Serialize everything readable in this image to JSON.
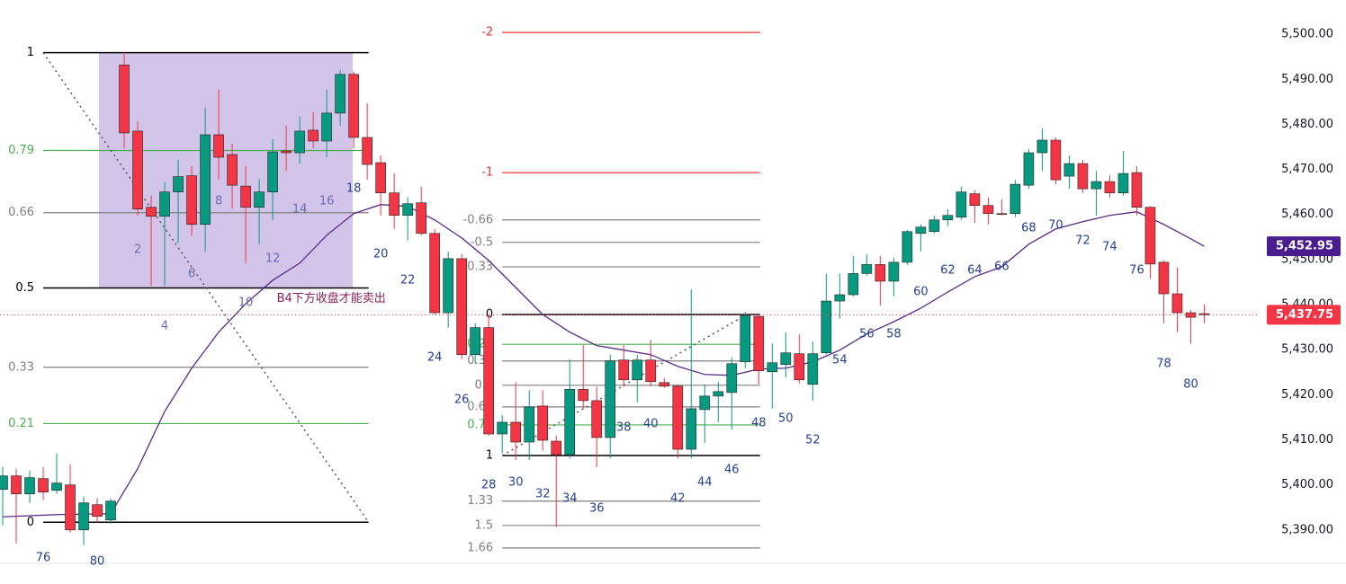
{
  "chart_data": {
    "type": "candlestick",
    "up_color": "#089981",
    "down_color": "#f23645",
    "xlim": [
      -8.2,
      85.1
    ],
    "ylim": [
      5378.0,
      5507.6
    ],
    "yticks": [
      {
        "value": 5390,
        "label": "5,390.00"
      },
      {
        "value": 5400,
        "label": "5,400.00"
      },
      {
        "value": 5410,
        "label": "5,410.00"
      },
      {
        "value": 5420,
        "label": "5,420.00"
      },
      {
        "value": 5430,
        "label": "5,430.00"
      },
      {
        "value": 5440,
        "label": "5,440.00"
      },
      {
        "value": 5450,
        "label": "5,450.00"
      },
      {
        "value": 5460,
        "label": "5,460.00"
      },
      {
        "value": 5470,
        "label": "5,470.00"
      },
      {
        "value": 5480,
        "label": "5,480.00"
      },
      {
        "value": 5490,
        "label": "5,490.00"
      },
      {
        "value": 5500,
        "label": "5,500.00"
      }
    ],
    "x": [
      -8,
      -7,
      -6,
      -5,
      -4,
      -3,
      -2,
      -1,
      0,
      1,
      2,
      3,
      4,
      5,
      6,
      7,
      8,
      9,
      10,
      11,
      12,
      13,
      14,
      15,
      16,
      17,
      18,
      19,
      20,
      21,
      22,
      23,
      24,
      25,
      26,
      27,
      28,
      29,
      30,
      31,
      32,
      33,
      34,
      35,
      36,
      37,
      38,
      39,
      40,
      41,
      42,
      43,
      44,
      45,
      46,
      47,
      48,
      49,
      50,
      51,
      52,
      53,
      54,
      55,
      56,
      57,
      58,
      59,
      60,
      61,
      62,
      63,
      64,
      65,
      66,
      67,
      68,
      69,
      70,
      71,
      72,
      73,
      74,
      75,
      76,
      77,
      78,
      79,
      80,
      81
    ],
    "open": [
      5399,
      5402,
      5398,
      5401.4,
      5398.8,
      5400,
      5390,
      5395.6,
      5392.2,
      5493.2,
      5478.5,
      5461.6,
      5459.6,
      5465,
      5468.6,
      5457.8,
      5477.7,
      5473.3,
      5466.3,
      5461.6,
      5465,
      5474.1,
      5473.7,
      5478.7,
      5476.3,
      5482.5,
      5491.1,
      5477.1,
      5471.5,
      5464.8,
      5459.8,
      5462.6,
      5455.8,
      5438.2,
      5450.2,
      5428.9,
      5434.9,
      5411.3,
      5413.9,
      5409.5,
      5417.5,
      5409.7,
      5406.7,
      5421.2,
      5418.7,
      5410.5,
      5427.7,
      5423.3,
      5427.7,
      5422.7,
      5421.9,
      5407.9,
      5416.7,
      5419.7,
      5420.5,
      5427.3,
      5437.4,
      5425.1,
      5426.7,
      5429.1,
      5422.3,
      5429.3,
      5440.8,
      5442.2,
      5446.9,
      5448.9,
      5445.2,
      5449.4,
      5455.8,
      5456.2,
      5458.8,
      5459.4,
      5464.6,
      5462.0,
      5460.2,
      5460.2,
      5466.5,
      5473.7,
      5476.5,
      5468.5,
      5471.3,
      5465.7,
      5467.3,
      5464.8,
      5469.3,
      5461.6,
      5449.4,
      5442.4,
      5438.2,
      5438.0
    ],
    "high": [
      5404,
      5403.6,
      5403.2,
      5404,
      5407,
      5404.6,
      5397.4,
      5397,
      5397,
      5496,
      5480.7,
      5464.2,
      5467.2,
      5472.2,
      5470.7,
      5483.7,
      5487.7,
      5475.7,
      5470.7,
      5467.8,
      5476.7,
      5479.7,
      5481.7,
      5482.7,
      5487.7,
      5492.1,
      5491.7,
      5484.7,
      5473.1,
      5469.1,
      5463.8,
      5466.2,
      5456.8,
      5451.8,
      5451.2,
      5435.9,
      5437.8,
      5415.5,
      5422.8,
      5421.0,
      5421.0,
      5410.9,
      5427.9,
      5431.0,
      5421.8,
      5428.9,
      5431.0,
      5428.9,
      5432.2,
      5423.7,
      5422.3,
      5443.4,
      5422.3,
      5422.9,
      5428.3,
      5438.4,
      5437.8,
      5431.4,
      5433.8,
      5433.4,
      5431.8,
      5446.9,
      5446.9,
      5450.8,
      5451.2,
      5450.8,
      5450.4,
      5456.6,
      5457.8,
      5459.8,
      5461.2,
      5466.2,
      5465.4,
      5463.8,
      5463.4,
      5467.7,
      5474.5,
      5479.1,
      5477.1,
      5473.1,
      5472.1,
      5469.7,
      5468.7,
      5474.1,
      5470.7,
      5461.8,
      5449.8,
      5448.2,
      5438.8,
      5440.0
    ],
    "low": [
      5391,
      5387,
      5396,
      5396.6,
      5398,
      5389.4,
      5386.6,
      5391.6,
      5391.4,
      5474.7,
      5459.8,
      5444.2,
      5444.2,
      5453.7,
      5455.4,
      5451.8,
      5467.7,
      5461.3,
      5449.2,
      5453.4,
      5458.8,
      5469.7,
      5471.3,
      5474.7,
      5472.7,
      5479.7,
      5474.7,
      5467.7,
      5459.8,
      5456.8,
      5454.2,
      5455.4,
      5437.8,
      5434.9,
      5427.9,
      5426.9,
      5410.9,
      5407.0,
      5405.5,
      5405.5,
      5407.6,
      5390.6,
      5405.9,
      5416.9,
      5403.9,
      5405.9,
      5421.8,
      5418.3,
      5421.8,
      5421.5,
      5405.9,
      5405.9,
      5409.3,
      5413.9,
      5412.3,
      5425.9,
      5422.3,
      5416.9,
      5423.9,
      5422.5,
      5418.7,
      5428.9,
      5436.9,
      5441.8,
      5446.5,
      5439.8,
      5441.8,
      5448.8,
      5451.8,
      5455.8,
      5457.4,
      5458.8,
      5458.2,
      5457.8,
      5459.8,
      5459.4,
      5465.7,
      5469.7,
      5466.7,
      5465.7,
      5464.8,
      5459.8,
      5463.8,
      5464.2,
      5459.8,
      5445.8,
      5435.9,
      5433.9,
      5431.3,
      5435.9
    ],
    "close": [
      5402,
      5398,
      5401.6,
      5398.4,
      5400.4,
      5390,
      5396,
      5393,
      5396.4,
      5478.1,
      5461.2,
      5459.6,
      5465,
      5468.4,
      5457.8,
      5477.7,
      5472.7,
      5466.5,
      5461.6,
      5465,
      5473.9,
      5473.7,
      5478.5,
      5476.3,
      5482.5,
      5491.1,
      5477.1,
      5471.1,
      5464.8,
      5459.8,
      5462.4,
      5455.8,
      5438.2,
      5450.2,
      5428.9,
      5434.9,
      5411.3,
      5413.9,
      5409.5,
      5417.3,
      5409.9,
      5406.7,
      5421.2,
      5418.7,
      5410.5,
      5427.5,
      5423.3,
      5427.7,
      5422.9,
      5421.9,
      5407.9,
      5416.9,
      5419.7,
      5420.7,
      5426.9,
      5437.6,
      5425.3,
      5427.1,
      5429.3,
      5423.3,
      5429.1,
      5440.8,
      5442.2,
      5446.9,
      5448.9,
      5445.2,
      5449.4,
      5456.2,
      5457.2,
      5458.8,
      5459.8,
      5465.0,
      5462.0,
      5460.2,
      5460.0,
      5466.7,
      5473.7,
      5476.5,
      5467.7,
      5471.3,
      5465.7,
      5467.3,
      5464.8,
      5469.1,
      5461.6,
      5449.0,
      5442.4,
      5438.2,
      5437.2,
      5437.75
    ],
    "ma": {
      "color": "#5b2a86",
      "x": [
        -8,
        -4,
        0,
        2,
        4,
        6,
        8,
        10,
        12,
        14,
        16,
        18,
        20,
        22,
        24,
        26,
        28,
        30,
        32,
        34,
        36,
        38,
        40,
        42,
        44,
        46,
        48,
        50,
        52,
        54,
        56,
        58,
        60,
        62,
        64,
        66,
        68,
        70,
        72,
        74,
        76,
        78,
        80,
        81
      ],
      "values": [
        5392.9,
        5393.4,
        5393.6,
        5403.6,
        5416.3,
        5425.9,
        5433.9,
        5440.2,
        5445.4,
        5449.2,
        5455.4,
        5460.2,
        5462.2,
        5461.8,
        5458.8,
        5454.8,
        5449.8,
        5443.8,
        5437.8,
        5433.9,
        5430.9,
        5429.9,
        5428.9,
        5426.3,
        5424.5,
        5424.3,
        5425.7,
        5425.9,
        5427.3,
        5429.9,
        5433.5,
        5436.2,
        5439.2,
        5442.8,
        5446.2,
        5448.4,
        5453.4,
        5456.8,
        5458.4,
        5459.8,
        5460.6,
        5457.8,
        5454.6,
        5452.95
      ]
    },
    "box": {
      "x": [
        -0.87,
        17.93
      ],
      "y": [
        5443.7,
        5495.9
      ],
      "color": "rgba(149,117,205,0.42)"
    },
    "fibs": [
      {
        "x": [
          -5,
          19.1
        ],
        "levels": [
          {
            "value": 1,
            "price": 5495.9,
            "color": "#000000"
          },
          {
            "value": 0.79,
            "price": 5474.2,
            "color": "#4caf50"
          },
          {
            "value": 0.66,
            "price": 5460.4,
            "color": "#808080"
          },
          {
            "value": 0.5,
            "price": 5443.7,
            "color": "#000000"
          },
          {
            "value": 0.33,
            "price": 5426.1,
            "color": "#808080"
          },
          {
            "value": 0.21,
            "price": 5413.6,
            "color": "#4caf50"
          },
          {
            "value": 0,
            "price": 5391.7,
            "color": "#000000"
          }
        ]
      },
      {
        "x": [
          29,
          48.1
        ],
        "levels": [
          {
            "value": -2,
            "price": 5500.4,
            "color": "#e53935"
          },
          {
            "value": -1,
            "price": 5469.3,
            "color": "#e53935"
          },
          {
            "value": -0.66,
            "price": 5458.8,
            "color": "#808080"
          },
          {
            "value": -0.5,
            "price": 5453.8,
            "color": "#808080"
          },
          {
            "value": -0.33,
            "price": 5448.4,
            "color": "#808080"
          },
          {
            "value": 0,
            "price": 5437.8,
            "color": "#000000"
          },
          {
            "value": 0.21,
            "price": 5431.2,
            "color": "#4caf50"
          },
          {
            "value": 0.33,
            "price": 5427.5,
            "color": "#808080"
          },
          {
            "value": 0.5,
            "price": 5422.1,
            "color": "#808080"
          },
          {
            "value": 0.66,
            "price": 5417.3,
            "color": "#808080"
          },
          {
            "value": 0.79,
            "price": 5413.3,
            "color": "#4caf50"
          },
          {
            "value": 1,
            "price": 5406.5,
            "color": "#000000"
          },
          {
            "value": 1.33,
            "price": 5396.4,
            "color": "#808080"
          },
          {
            "value": 1.5,
            "price": 5391.0,
            "color": "#808080"
          },
          {
            "value": 1.66,
            "price": 5386.0,
            "color": "#808080"
          }
        ]
      }
    ],
    "trendlines": [
      {
        "x": [
          -5,
          19.1
        ],
        "y": [
          5495.9,
          5391.7
        ]
      },
      {
        "x": [
          29,
          47.1
        ],
        "y": [
          5406.5,
          5437.8
        ]
      }
    ],
    "annotation": {
      "text": "B4下方收盘才能卖出",
      "x": 12.3,
      "y": 5441.3,
      "color": "#8b1f55"
    },
    "bar_numbers": {
      "labels": [
        76,
        80,
        2,
        4,
        6,
        8,
        10,
        12,
        14,
        16,
        18,
        20,
        22,
        24,
        26,
        28,
        30,
        32,
        34,
        36,
        38,
        40,
        42,
        44,
        46,
        48,
        50,
        52,
        54,
        56,
        58,
        60,
        62,
        64,
        66,
        68,
        70,
        72,
        74,
        76,
        78,
        80
      ],
      "x": [
        -5,
        -1,
        2,
        4,
        6,
        8,
        10,
        12,
        14,
        16,
        18,
        20,
        22,
        24,
        26,
        28,
        30,
        32,
        34,
        36,
        38,
        40,
        42,
        44,
        46,
        48,
        50,
        52,
        54,
        56,
        58,
        60,
        62,
        64,
        66,
        68,
        70,
        72,
        74,
        76,
        78,
        80
      ]
    },
    "price_labels": [
      {
        "value": 5452.95,
        "label": "5,452.95",
        "color": "#4a1d8f",
        "dotted_line": false
      },
      {
        "value": 5437.75,
        "label": "5,437.75",
        "color": "#f23645",
        "dotted_line": true
      }
    ]
  }
}
